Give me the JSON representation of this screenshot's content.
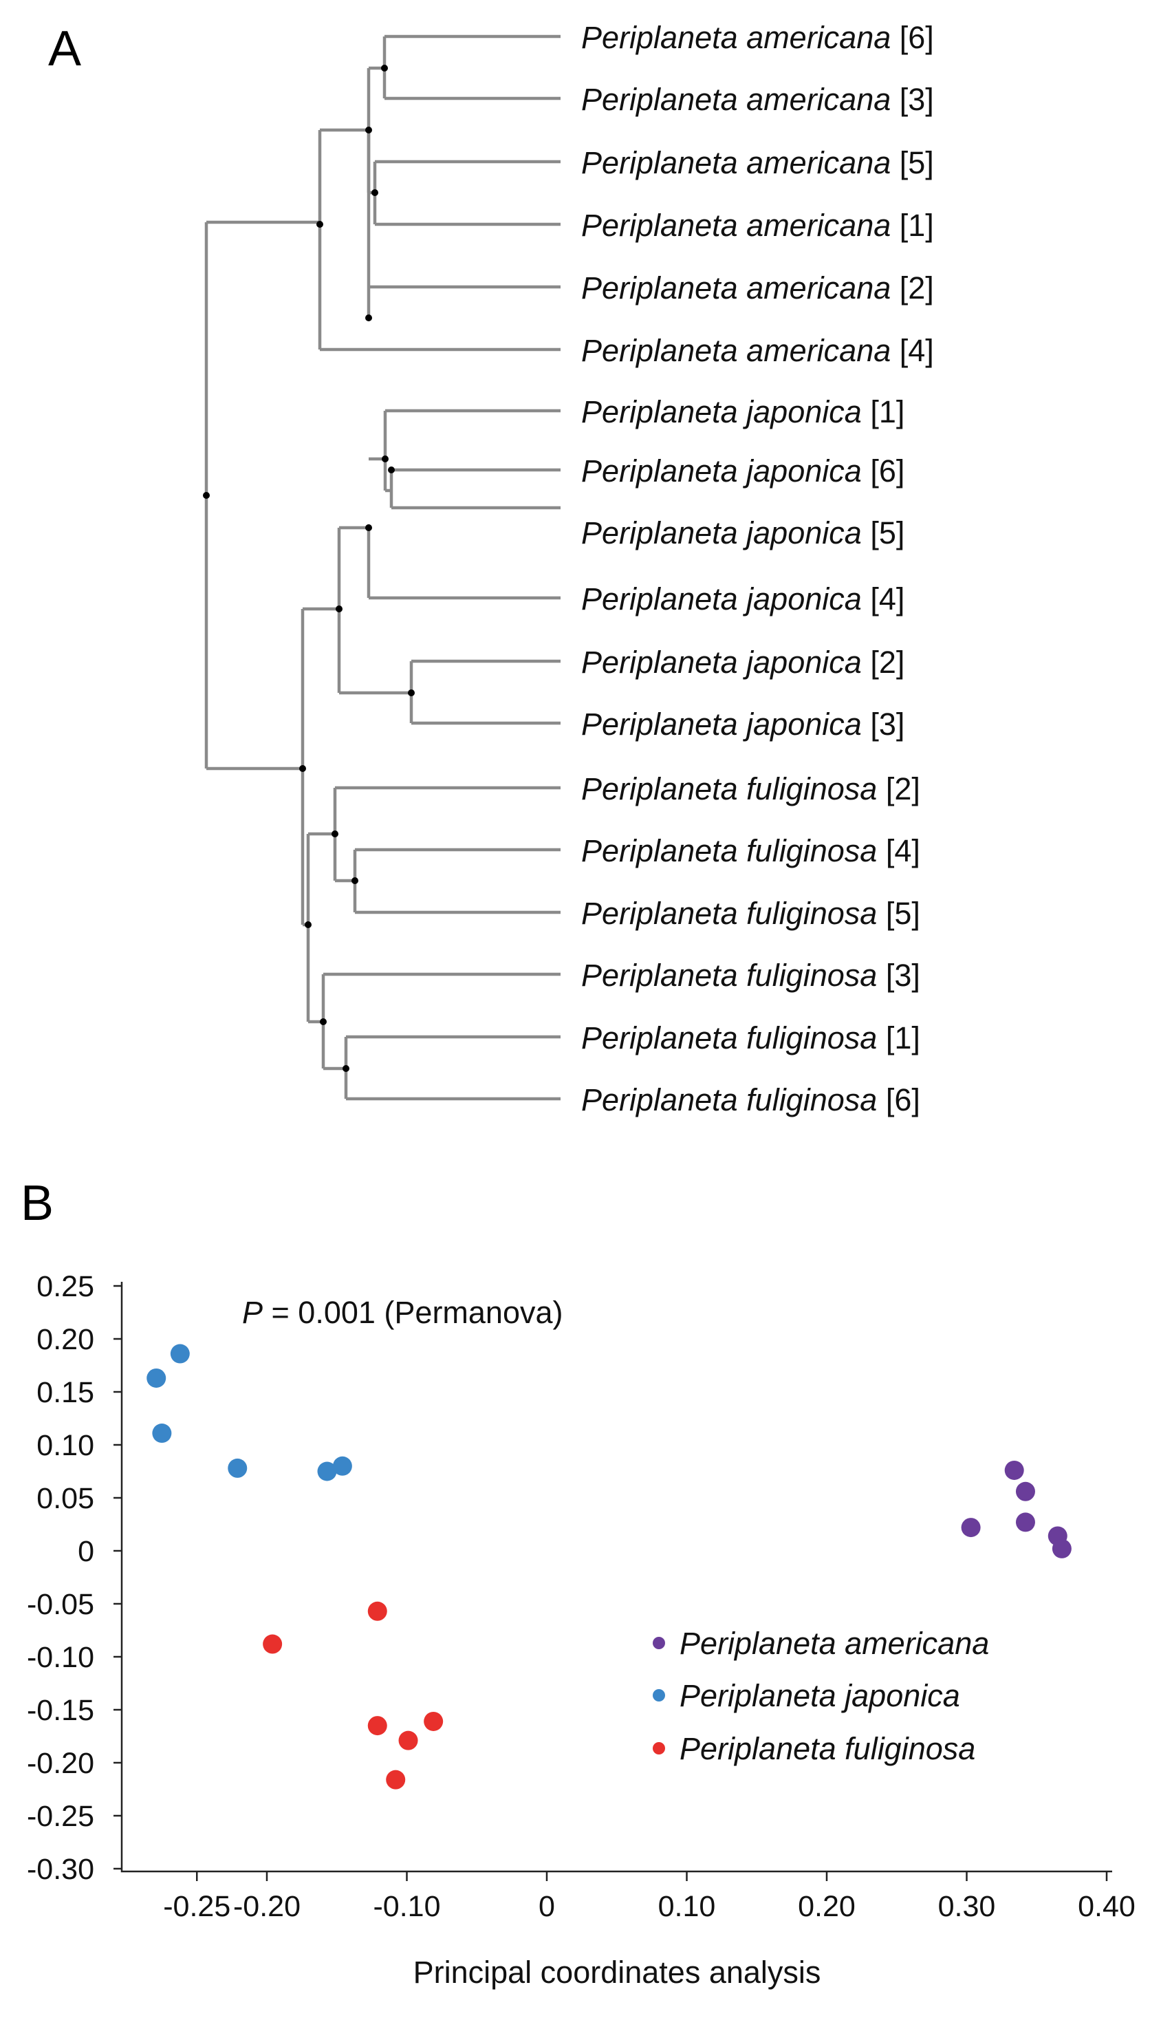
{
  "panel_a": {
    "label": "A",
    "leaves": [
      {
        "name": "Periplaneta americana",
        "id": "[6]"
      },
      {
        "name": "Periplaneta americana",
        "id": "[3]"
      },
      {
        "name": "Periplaneta americana",
        "id": "[5]"
      },
      {
        "name": "Periplaneta americana",
        "id": "[1]"
      },
      {
        "name": "Periplaneta americana",
        "id": "[2]"
      },
      {
        "name": "Periplaneta americana",
        "id": "[4]"
      },
      {
        "name": "Periplaneta japonica",
        "id": "[1]"
      },
      {
        "name": "Periplaneta japonica",
        "id": "[6]"
      },
      {
        "name": "Periplaneta japonica",
        "id": "[5]"
      },
      {
        "name": "Periplaneta japonica",
        "id": "[4]"
      },
      {
        "name": "Periplaneta japonica",
        "id": "[2]"
      },
      {
        "name": "Periplaneta japonica",
        "id": "[3]"
      },
      {
        "name": "Periplaneta fuliginosa",
        "id": "[2]"
      },
      {
        "name": "Periplaneta fuliginosa",
        "id": "[4]"
      },
      {
        "name": "Periplaneta fuliginosa",
        "id": "[5]"
      },
      {
        "name": "Periplaneta fuliginosa",
        "id": "[3]"
      },
      {
        "name": "Periplaneta fuliginosa",
        "id": "[1]"
      },
      {
        "name": "Periplaneta fuliginosa",
        "id": "[6]"
      }
    ]
  },
  "panel_b": {
    "label": "B",
    "annotation_p": "P",
    "annotation_rest": " = 0.001 (Permanova)"
  },
  "chart_data": {
    "type": "scatter",
    "title": "",
    "xlabel": "Principal coordinates analysis",
    "ylabel": "",
    "xlim": [
      -0.3,
      0.4
    ],
    "ylim": [
      -0.3,
      0.25
    ],
    "x_ticks": [
      -0.25,
      -0.2,
      -0.1,
      0,
      0.1,
      0.2,
      0.3,
      0.4
    ],
    "x_tick_labels": [
      "-0.25",
      "-0.20",
      "-0.10",
      "0",
      "0.10",
      "0.20",
      "0.30",
      "0.40"
    ],
    "y_ticks": [
      0.25,
      0.2,
      0.15,
      0.1,
      0.05,
      0,
      -0.05,
      -0.1,
      -0.15,
      -0.2,
      -0.25,
      -0.3
    ],
    "y_tick_labels": [
      "0.25",
      "0.20",
      "0.15",
      "0.10",
      "0.05",
      "0",
      "-0.05",
      "-0.10",
      "-0.15",
      "-0.20",
      "-0.25",
      "-0.30"
    ],
    "legend_position": "right-middle",
    "series": [
      {
        "name": "Periplaneta americana",
        "color": "#6a3d9a",
        "points": [
          [
            0.334,
            0.076
          ],
          [
            0.342,
            0.056
          ],
          [
            0.342,
            0.027
          ],
          [
            0.303,
            0.022
          ],
          [
            0.365,
            0.014
          ],
          [
            0.368,
            0.002
          ]
        ]
      },
      {
        "name": "Periplaneta japonica",
        "color": "#3a86c8",
        "points": [
          [
            -0.262,
            0.186
          ],
          [
            -0.279,
            0.163
          ],
          [
            -0.275,
            0.111
          ],
          [
            -0.221,
            0.078
          ],
          [
            -0.157,
            0.075
          ],
          [
            -0.146,
            0.08
          ]
        ]
      },
      {
        "name": "Periplaneta fuliginosa",
        "color": "#e8302c",
        "points": [
          [
            -0.121,
            -0.057
          ],
          [
            -0.196,
            -0.088
          ],
          [
            -0.121,
            -0.165
          ],
          [
            -0.081,
            -0.161
          ],
          [
            -0.099,
            -0.179
          ],
          [
            -0.108,
            -0.216
          ]
        ]
      }
    ]
  }
}
